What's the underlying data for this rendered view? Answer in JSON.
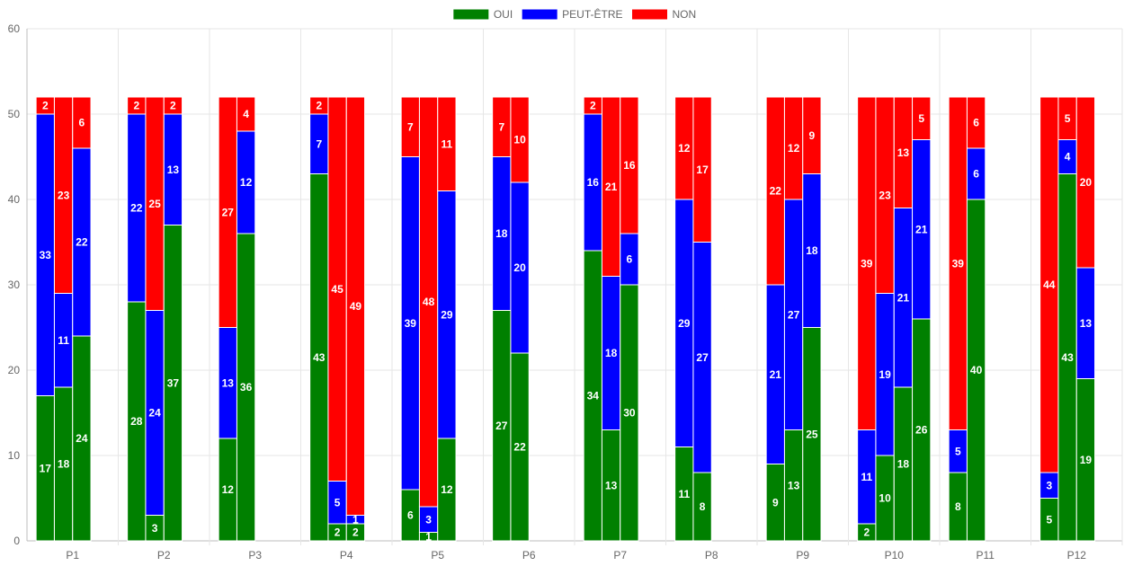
{
  "chart_data": {
    "type": "bar",
    "stacked": true,
    "ylim": [
      0,
      60
    ],
    "yticks": [
      0,
      10,
      20,
      30,
      40,
      50,
      60
    ],
    "grid": true,
    "legend_position": "top-center",
    "legend": [
      {
        "name": "OUI",
        "color": "#008000"
      },
      {
        "name": "PEUT-ÊTRE",
        "color": "#0000ff"
      },
      {
        "name": "NON",
        "color": "#ff0000"
      }
    ],
    "groups": [
      {
        "label": "P1",
        "bars": [
          {
            "oui": 17,
            "peut": 33,
            "non": 2
          },
          {
            "oui": 18,
            "peut": 11,
            "non": 23
          },
          {
            "oui": 24,
            "peut": 22,
            "non": 6
          }
        ]
      },
      {
        "label": "P2",
        "bars": [
          {
            "oui": 28,
            "peut": 22,
            "non": 2
          },
          {
            "oui": 3,
            "peut": 24,
            "non": 25
          },
          {
            "oui": 37,
            "peut": 13,
            "non": 2
          }
        ]
      },
      {
        "label": "P3",
        "bars": [
          {
            "oui": 12,
            "peut": 13,
            "non": 27
          },
          {
            "oui": 36,
            "peut": 12,
            "non": 4
          }
        ]
      },
      {
        "label": "P4",
        "bars": [
          {
            "oui": 43,
            "peut": 7,
            "non": 2
          },
          {
            "oui": 2,
            "peut": 5,
            "non": 45
          },
          {
            "oui": 2,
            "peut": 1,
            "non": 49
          }
        ]
      },
      {
        "label": "P5",
        "bars": [
          {
            "oui": 6,
            "peut": 39,
            "non": 7
          },
          {
            "oui": 1,
            "peut": 3,
            "non": 48
          },
          {
            "oui": 12,
            "peut": 29,
            "non": 11
          }
        ]
      },
      {
        "label": "P6",
        "bars": [
          {
            "oui": 27,
            "peut": 18,
            "non": 7
          },
          {
            "oui": 22,
            "peut": 20,
            "non": 10
          }
        ]
      },
      {
        "label": "P7",
        "bars": [
          {
            "oui": 34,
            "peut": 16,
            "non": 2
          },
          {
            "oui": 13,
            "peut": 18,
            "non": 21
          },
          {
            "oui": 30,
            "peut": 6,
            "non": 16
          }
        ]
      },
      {
        "label": "P8",
        "bars": [
          {
            "oui": 11,
            "peut": 29,
            "non": 12
          },
          {
            "oui": 8,
            "peut": 27,
            "non": 17
          }
        ]
      },
      {
        "label": "P9",
        "bars": [
          {
            "oui": 9,
            "peut": 21,
            "non": 22
          },
          {
            "oui": 13,
            "peut": 27,
            "non": 12
          },
          {
            "oui": 25,
            "peut": 18,
            "non": 9
          }
        ]
      },
      {
        "label": "P10",
        "bars": [
          {
            "oui": 2,
            "peut": 11,
            "non": 39
          },
          {
            "oui": 10,
            "peut": 19,
            "non": 23
          },
          {
            "oui": 18,
            "peut": 21,
            "non": 13
          },
          {
            "oui": 26,
            "peut": 21,
            "non": 5
          }
        ]
      },
      {
        "label": "P11",
        "bars": [
          {
            "oui": 8,
            "peut": 5,
            "non": 39
          },
          {
            "oui": 40,
            "peut": 6,
            "non": 6
          }
        ]
      },
      {
        "label": "P12",
        "bars": [
          {
            "oui": 5,
            "peut": 3,
            "non": 44
          },
          {
            "oui": 43,
            "peut": 4,
            "non": 5
          },
          {
            "oui": 19,
            "peut": 13,
            "non": 20
          }
        ]
      }
    ]
  }
}
